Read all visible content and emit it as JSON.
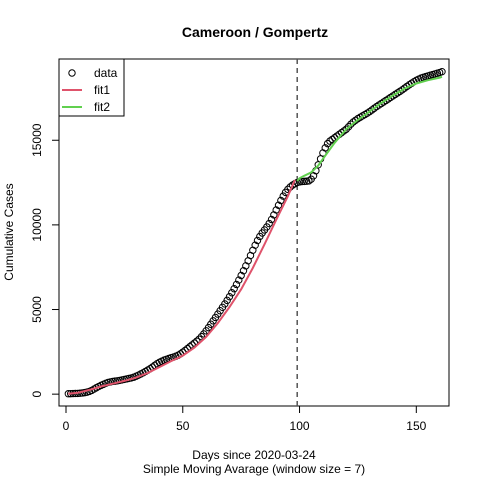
{
  "chart_data": {
    "type": "line",
    "title": "Cameroon / Gompertz",
    "xlabel": "Days since 2020-03-24",
    "xlabel2": "Simple Moving Avarage (window size = 7)",
    "ylabel": "Cumulative Cases",
    "xlim": [
      -3,
      164
    ],
    "ylim": [
      -700,
      19800
    ],
    "xticks": [
      0,
      50,
      100,
      150
    ],
    "yticks": [
      0,
      5000,
      10000,
      15000
    ],
    "vline": {
      "x": 99,
      "style": "dashed",
      "color": "#555555"
    },
    "grid": false,
    "legend": {
      "placement": "top-left",
      "entries": [
        {
          "label": "data",
          "kind": "points",
          "color": "#000000"
        },
        {
          "label": "fit1",
          "kind": "line",
          "color": "#DF536B"
        },
        {
          "label": "fit2",
          "kind": "line",
          "color": "#61D04F"
        }
      ]
    },
    "series": [
      {
        "name": "data",
        "kind": "points",
        "color": "#000000",
        "x": [
          1,
          2,
          3,
          4,
          5,
          6,
          7,
          8,
          9,
          10,
          11,
          12,
          13,
          14,
          15,
          16,
          17,
          18,
          19,
          20,
          21,
          22,
          23,
          24,
          25,
          26,
          27,
          28,
          29,
          30,
          31,
          32,
          33,
          34,
          35,
          36,
          37,
          38,
          39,
          40,
          41,
          42,
          43,
          44,
          45,
          46,
          47,
          48,
          49,
          50,
          51,
          52,
          53,
          54,
          55,
          56,
          57,
          58,
          59,
          60,
          61,
          62,
          63,
          64,
          65,
          66,
          67,
          68,
          69,
          70,
          71,
          72,
          73,
          74,
          75,
          76,
          77,
          78,
          79,
          80,
          81,
          82,
          83,
          84,
          85,
          86,
          87,
          88,
          89,
          90,
          91,
          92,
          93,
          94,
          95,
          96,
          97,
          98,
          99,
          100,
          101,
          102,
          103,
          104,
          105,
          106,
          107,
          108,
          109,
          110,
          111,
          112,
          113,
          114,
          115,
          116,
          117,
          118,
          119,
          120,
          121,
          122,
          123,
          124,
          125,
          126,
          127,
          128,
          129,
          130,
          131,
          132,
          133,
          134,
          135,
          136,
          137,
          138,
          139,
          140,
          141,
          142,
          143,
          144,
          145,
          146,
          147,
          148,
          149,
          150,
          151,
          152,
          153,
          154,
          155,
          156,
          157,
          158,
          159,
          160,
          161
        ],
        "y": [
          25,
          30,
          35,
          40,
          45,
          55,
          70,
          90,
          120,
          160,
          220,
          300,
          380,
          450,
          520,
          580,
          640,
          690,
          720,
          750,
          770,
          790,
          810,
          840,
          870,
          900,
          930,
          960,
          1000,
          1060,
          1120,
          1190,
          1260,
          1340,
          1420,
          1500,
          1600,
          1700,
          1800,
          1880,
          1950,
          2010,
          2060,
          2110,
          2150,
          2190,
          2240,
          2300,
          2380,
          2480,
          2580,
          2690,
          2800,
          2910,
          3020,
          3130,
          3250,
          3400,
          3560,
          3740,
          3930,
          4130,
          4330,
          4530,
          4730,
          4930,
          5130,
          5330,
          5540,
          5760,
          5990,
          6230,
          6480,
          6740,
          7010,
          7290,
          7580,
          7880,
          8190,
          8500,
          8800,
          9080,
          9320,
          9520,
          9700,
          9880,
          10080,
          10320,
          10590,
          10880,
          11160,
          11440,
          11700,
          11920,
          12100,
          12240,
          12350,
          12430,
          12500,
          12540,
          12560,
          12570,
          12580,
          12600,
          12700,
          12900,
          13200,
          13550,
          13900,
          14250,
          14550,
          14800,
          14950,
          15050,
          15150,
          15250,
          15350,
          15450,
          15550,
          15650,
          15800,
          15950,
          16080,
          16180,
          16280,
          16360,
          16440,
          16520,
          16600,
          16690,
          16790,
          16890,
          16990,
          17080,
          17170,
          17260,
          17350,
          17440,
          17530,
          17620,
          17710,
          17800,
          17890,
          17980,
          18080,
          18180,
          18280,
          18370,
          18460,
          18540,
          18610,
          18670,
          18720,
          18760,
          18800,
          18840,
          18880,
          18920,
          18960,
          19000,
          19050
        ]
      },
      {
        "name": "fit1",
        "kind": "line",
        "color": "#DF536B",
        "x": [
          1,
          5,
          10,
          15,
          20,
          25,
          30,
          35,
          40,
          45,
          50,
          55,
          60,
          65,
          70,
          75,
          80,
          85,
          90,
          95,
          98
        ],
        "y": [
          20,
          80,
          250,
          450,
          620,
          780,
          980,
          1250,
          1600,
          1950,
          2280,
          2750,
          3380,
          4200,
          5150,
          6200,
          7450,
          8850,
          10300,
          11700,
          12650
        ]
      },
      {
        "name": "fit2",
        "kind": "line",
        "color": "#61D04F",
        "x": [
          99,
          100,
          102,
          105,
          108,
          110,
          115,
          120,
          125,
          130,
          135,
          140,
          145,
          150,
          155,
          160,
          161
        ],
        "y": [
          12600,
          12750,
          12900,
          13100,
          13500,
          13900,
          14850,
          15650,
          16200,
          16700,
          17200,
          17650,
          18050,
          18350,
          18550,
          18700,
          18750
        ]
      }
    ]
  }
}
